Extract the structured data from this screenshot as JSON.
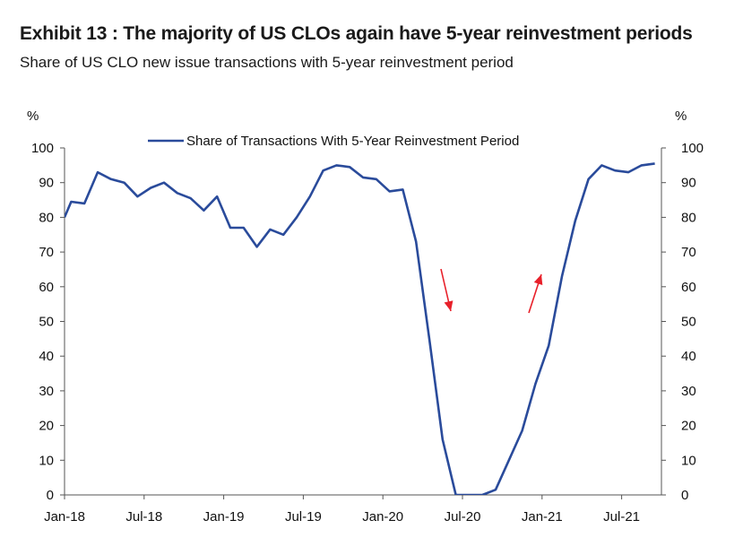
{
  "header": {
    "title": "Exhibit 13 : The majority of US CLOs again have 5-year reinvestment periods",
    "subtitle": "Share of US CLO new issue transactions with 5-year reinvestment period"
  },
  "chart_data": {
    "type": "line",
    "title": "Exhibit 13 : The majority of US CLOs again have 5-year reinvestment periods",
    "subtitle": "Share of US CLO new issue transactions with 5-year reinvestment period",
    "ylabel_left": "%",
    "ylabel_right": "%",
    "ylim": [
      0,
      100
    ],
    "yticks": [
      0,
      10,
      20,
      30,
      40,
      50,
      60,
      70,
      80,
      90,
      100
    ],
    "xlim": [
      0,
      45
    ],
    "xticks": [
      {
        "label": "Jan-18",
        "index": 0
      },
      {
        "label": "Jul-18",
        "index": 6
      },
      {
        "label": "Jan-19",
        "index": 12
      },
      {
        "label": "Jul-19",
        "index": 18
      },
      {
        "label": "Jan-20",
        "index": 24
      },
      {
        "label": "Jul-20",
        "index": 30
      },
      {
        "label": "Jan-21",
        "index": 36
      },
      {
        "label": "Jul-21",
        "index": 42
      }
    ],
    "legend": "top-center",
    "series": [
      {
        "name": "Share of Transactions With 5-Year Reinvestment Period",
        "color": "#2a4b9b",
        "x": [
          0,
          0.5,
          1.5,
          2.5,
          3.5,
          4.5,
          5.5,
          6.5,
          7.5,
          8.5,
          9.5,
          10.5,
          11.5,
          12.5,
          13.5,
          14.5,
          15.5,
          16.5,
          17.5,
          18.5,
          19.5,
          20.5,
          21.5,
          22.5,
          23.5,
          24.5,
          25.5,
          26.5,
          27.5,
          28.5,
          29.5,
          30.5,
          31.5,
          32.5,
          33.5,
          34.5,
          35.5,
          36.5,
          37.5,
          38.5,
          39.5,
          40.5,
          41.5,
          42.5,
          43.5,
          44.5
        ],
        "values": [
          80,
          84.5,
          84,
          93,
          91,
          90,
          86,
          88.5,
          90,
          87,
          85.5,
          82,
          86,
          77,
          77,
          71.5,
          76.5,
          75,
          80,
          86,
          93.5,
          95,
          94.5,
          91.5,
          91,
          87.5,
          88,
          73,
          45,
          16,
          0,
          0,
          0,
          1.5,
          10,
          18.5,
          32,
          43,
          63,
          79,
          91,
          95,
          93.5,
          93,
          95,
          95.5
        ]
      }
    ],
    "annotations": [
      {
        "type": "arrow",
        "direction": "down",
        "color": "#e8202a",
        "near": "May-20"
      },
      {
        "type": "arrow",
        "direction": "up",
        "color": "#e8202a",
        "near": "Nov-20"
      }
    ]
  }
}
